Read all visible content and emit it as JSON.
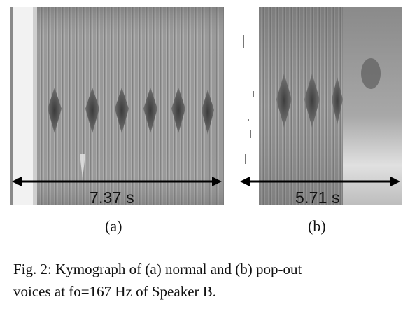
{
  "figure": {
    "panel_a": {
      "duration": "7.37 s",
      "label": "(a)"
    },
    "panel_b": {
      "duration": "5.71 s",
      "label": "(b)"
    },
    "caption_line1": "Fig. 2: Kymograph of (a) normal and (b) pop-out",
    "caption_line2": "voices at fo=167 Hz of Speaker B."
  }
}
